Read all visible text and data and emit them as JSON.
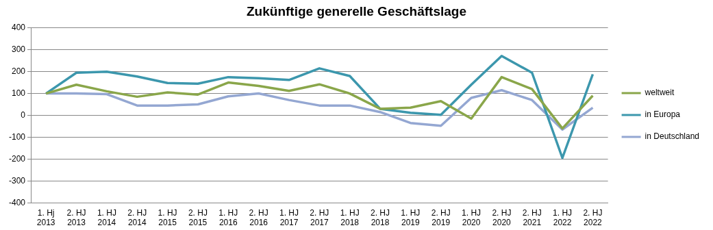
{
  "chart_data": {
    "type": "line",
    "title": "Zukünftige generelle Geschäftslage",
    "categories": [
      "1. Hj\n2013",
      "2. HJ\n2013",
      "1. HJ\n2014",
      "2. HJ\n2014",
      "1. HJ\n2015",
      "2. HJ\n2015",
      "1. HJ\n2016",
      "2. HJ\n2016",
      "1. HJ\n2017",
      "2. HJ\n2017",
      "1. HJ\n2018",
      "2. HJ\n2018",
      "1. HJ\n2019",
      "2. HJ\n2019",
      "1. HJ\n2020",
      "2. HJ\n2020",
      "2. HJ\n2021",
      "1. HJ\n2022",
      "2. HJ\n2022"
    ],
    "series": [
      {
        "name": "weltweit",
        "color": "#8aa64a",
        "values": [
          100,
          140,
          110,
          85,
          105,
          95,
          150,
          135,
          112,
          142,
          100,
          30,
          35,
          65,
          -15,
          175,
          120,
          -60,
          90
        ]
      },
      {
        "name": "in Europa",
        "color": "#3c97ad",
        "values": [
          100,
          195,
          200,
          178,
          148,
          145,
          175,
          170,
          162,
          215,
          180,
          30,
          12,
          2,
          140,
          272,
          195,
          -195,
          188
        ]
      },
      {
        "name": "in Deutschland",
        "color": "#94a7d2",
        "values": [
          100,
          100,
          97,
          45,
          45,
          50,
          87,
          100,
          70,
          45,
          45,
          15,
          -35,
          -48,
          80,
          115,
          70,
          -65,
          35
        ]
      }
    ],
    "ylim": [
      -400,
      400
    ],
    "yticks": [
      -400,
      -300,
      -200,
      -100,
      0,
      100,
      200,
      300,
      400
    ],
    "grid": "y",
    "legend": "right",
    "marker": "none",
    "line_style": "solid"
  }
}
